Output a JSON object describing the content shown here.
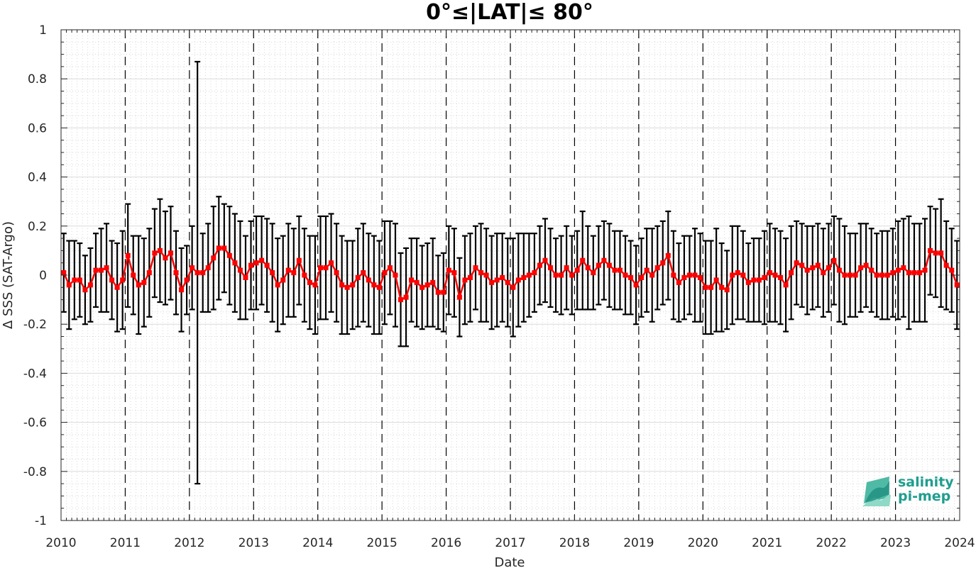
{
  "chart_data": {
    "type": "line",
    "title": "0°≤|LAT|≤ 80°",
    "xlabel": "Date",
    "ylabel": "Δ SSS (SAT-Argo)",
    "xlim": [
      2010,
      2024
    ],
    "ylim": [
      -1,
      1
    ],
    "x_ticks": [
      "2010",
      "2011",
      "2012",
      "2013",
      "2014",
      "2015",
      "2016",
      "2017",
      "2018",
      "2019",
      "2020",
      "2021",
      "2022",
      "2023",
      "2024"
    ],
    "y_ticks": [
      "-1",
      "-0.8",
      "-0.6",
      "-0.4",
      "-0.2",
      "0",
      "0.2",
      "0.4",
      "0.6",
      "0.8",
      "1"
    ],
    "grid": true,
    "year_boundaries_dashed": true,
    "series": [
      {
        "color": "#ff0000",
        "marker": "square",
        "errorbar_color": "#000000",
        "x": [
          "2010-01",
          "2010-02",
          "2010-03",
          "2010-04",
          "2010-05",
          "2010-06",
          "2010-07",
          "2010-08",
          "2010-09",
          "2010-10",
          "2010-11",
          "2010-12",
          "2011-01",
          "2011-02",
          "2011-03",
          "2011-04",
          "2011-05",
          "2011-06",
          "2011-07",
          "2011-08",
          "2011-09",
          "2011-10",
          "2011-11",
          "2011-12",
          "2012-01",
          "2012-02",
          "2012-03",
          "2012-04",
          "2012-05",
          "2012-06",
          "2012-07",
          "2012-08",
          "2012-09",
          "2012-10",
          "2012-11",
          "2012-12",
          "2013-01",
          "2013-02",
          "2013-03",
          "2013-04",
          "2013-05",
          "2013-06",
          "2013-07",
          "2013-08",
          "2013-09",
          "2013-10",
          "2013-11",
          "2013-12",
          "2014-01",
          "2014-02",
          "2014-03",
          "2014-04",
          "2014-05",
          "2014-06",
          "2014-07",
          "2014-08",
          "2014-09",
          "2014-10",
          "2014-11",
          "2014-12",
          "2015-01",
          "2015-02",
          "2015-03",
          "2015-04",
          "2015-05",
          "2015-06",
          "2015-07",
          "2015-08",
          "2015-09",
          "2015-10",
          "2015-11",
          "2015-12",
          "2016-01",
          "2016-02",
          "2016-03",
          "2016-04",
          "2016-05",
          "2016-06",
          "2016-07",
          "2016-08",
          "2016-09",
          "2016-10",
          "2016-11",
          "2016-12",
          "2017-01",
          "2017-02",
          "2017-03",
          "2017-04",
          "2017-05",
          "2017-06",
          "2017-07",
          "2017-08",
          "2017-09",
          "2017-10",
          "2017-11",
          "2017-12",
          "2018-01",
          "2018-02",
          "2018-03",
          "2018-04",
          "2018-05",
          "2018-06",
          "2018-07",
          "2018-08",
          "2018-09",
          "2018-10",
          "2018-11",
          "2018-12",
          "2019-01",
          "2019-02",
          "2019-03",
          "2019-04",
          "2019-05",
          "2019-06",
          "2019-07",
          "2019-08",
          "2019-09",
          "2019-10",
          "2019-11",
          "2019-12",
          "2020-01",
          "2020-02",
          "2020-03",
          "2020-04",
          "2020-05",
          "2020-06",
          "2020-07",
          "2020-08",
          "2020-09",
          "2020-10",
          "2020-11",
          "2020-12",
          "2021-01",
          "2021-02",
          "2021-03",
          "2021-04",
          "2021-05",
          "2021-06",
          "2021-07",
          "2021-08",
          "2021-09",
          "2021-10",
          "2021-11",
          "2021-12",
          "2022-01",
          "2022-02",
          "2022-03",
          "2022-04",
          "2022-05",
          "2022-06",
          "2022-07",
          "2022-08",
          "2022-09",
          "2022-10",
          "2022-11",
          "2022-12",
          "2023-01",
          "2023-02",
          "2023-03",
          "2023-04",
          "2023-05",
          "2023-06",
          "2023-07",
          "2023-08",
          "2023-09",
          "2023-10",
          "2023-11",
          "2023-12"
        ],
        "y": [
          0.01,
          -0.04,
          -0.02,
          -0.02,
          -0.06,
          -0.04,
          0.02,
          0.02,
          0.03,
          -0.02,
          -0.05,
          -0.02,
          0.08,
          0.0,
          -0.04,
          -0.03,
          0.01,
          0.09,
          0.1,
          0.07,
          0.09,
          0.01,
          -0.06,
          -0.02,
          0.03,
          0.01,
          0.01,
          0.03,
          0.07,
          0.11,
          0.11,
          0.08,
          0.05,
          0.02,
          -0.01,
          0.04,
          0.05,
          0.06,
          0.04,
          0.01,
          -0.04,
          -0.02,
          0.02,
          0.01,
          0.06,
          0.0,
          -0.03,
          -0.04,
          0.03,
          0.03,
          0.05,
          0.01,
          -0.04,
          -0.05,
          -0.04,
          -0.01,
          0.01,
          -0.02,
          -0.04,
          -0.05,
          0.01,
          0.03,
          0.0,
          -0.1,
          -0.09,
          -0.02,
          -0.03,
          -0.05,
          -0.04,
          -0.03,
          -0.07,
          -0.07,
          0.02,
          0.01,
          -0.09,
          -0.02,
          -0.01,
          0.03,
          0.01,
          0.0,
          -0.03,
          -0.02,
          -0.01,
          -0.03,
          -0.05,
          -0.02,
          -0.01,
          0.0,
          0.01,
          0.04,
          0.06,
          0.03,
          0.0,
          0.0,
          0.03,
          0.0,
          0.02,
          0.06,
          0.03,
          0.01,
          0.04,
          0.06,
          0.04,
          0.02,
          0.02,
          0.0,
          -0.01,
          -0.04,
          -0.01,
          0.02,
          0.0,
          0.03,
          0.05,
          0.08,
          0.0,
          -0.03,
          -0.01,
          0.0,
          0.0,
          -0.01,
          -0.05,
          -0.05,
          -0.02,
          -0.05,
          -0.06,
          0.0,
          0.01,
          0.0,
          -0.03,
          -0.02,
          -0.02,
          -0.01,
          0.01,
          0.0,
          -0.01,
          -0.04,
          0.01,
          0.05,
          0.04,
          0.02,
          0.03,
          0.04,
          0.01,
          0.03,
          0.06,
          0.02,
          0.0,
          0.0,
          0.0,
          0.03,
          0.04,
          0.02,
          0.0,
          0.0,
          0.0,
          0.01,
          0.02,
          0.03,
          0.01,
          0.01,
          0.01,
          0.02,
          0.1,
          0.09,
          0.09,
          0.04,
          0.02,
          -0.04
        ],
        "err": [
          0.16,
          0.18,
          0.16,
          0.15,
          0.14,
          0.15,
          0.15,
          0.17,
          0.18,
          0.16,
          0.18,
          0.2,
          0.21,
          0.16,
          0.2,
          0.18,
          0.18,
          0.18,
          0.21,
          0.19,
          0.19,
          0.17,
          0.17,
          0.14,
          0.17,
          0.86,
          0.16,
          0.18,
          0.21,
          0.21,
          0.18,
          0.2,
          0.2,
          0.2,
          0.17,
          0.18,
          0.19,
          0.18,
          0.19,
          0.2,
          0.19,
          0.18,
          0.19,
          0.18,
          0.18,
          0.19,
          0.19,
          0.2,
          0.21,
          0.21,
          0.2,
          0.2,
          0.2,
          0.19,
          0.18,
          0.2,
          0.2,
          0.19,
          0.2,
          0.19,
          0.21,
          0.19,
          0.21,
          0.19,
          0.2,
          0.17,
          0.18,
          0.17,
          0.17,
          0.18,
          0.15,
          0.16,
          0.18,
          0.18,
          0.16,
          0.18,
          0.18,
          0.17,
          0.2,
          0.19,
          0.19,
          0.19,
          0.18,
          0.18,
          0.2,
          0.19,
          0.18,
          0.17,
          0.16,
          0.16,
          0.17,
          0.16,
          0.15,
          0.16,
          0.17,
          0.16,
          0.16,
          0.2,
          0.17,
          0.15,
          0.16,
          0.16,
          0.17,
          0.16,
          0.16,
          0.16,
          0.15,
          0.16,
          0.16,
          0.17,
          0.19,
          0.17,
          0.17,
          0.18,
          0.18,
          0.16,
          0.17,
          0.16,
          0.19,
          0.18,
          0.19,
          0.19,
          0.21,
          0.18,
          0.16,
          0.2,
          0.19,
          0.18,
          0.16,
          0.17,
          0.17,
          0.19,
          0.2,
          0.19,
          0.19,
          0.19,
          0.19,
          0.17,
          0.17,
          0.18,
          0.17,
          0.17,
          0.18,
          0.18,
          0.18,
          0.21,
          0.2,
          0.17,
          0.17,
          0.18,
          0.17,
          0.17,
          0.17,
          0.18,
          0.18,
          0.18,
          0.2,
          0.2,
          0.23,
          0.2,
          0.2,
          0.21,
          0.18,
          0.18,
          0.22,
          0.18,
          0.17,
          0.18
        ]
      }
    ]
  },
  "logo": {
    "line1": "salinity",
    "line2": "pi-mep"
  }
}
